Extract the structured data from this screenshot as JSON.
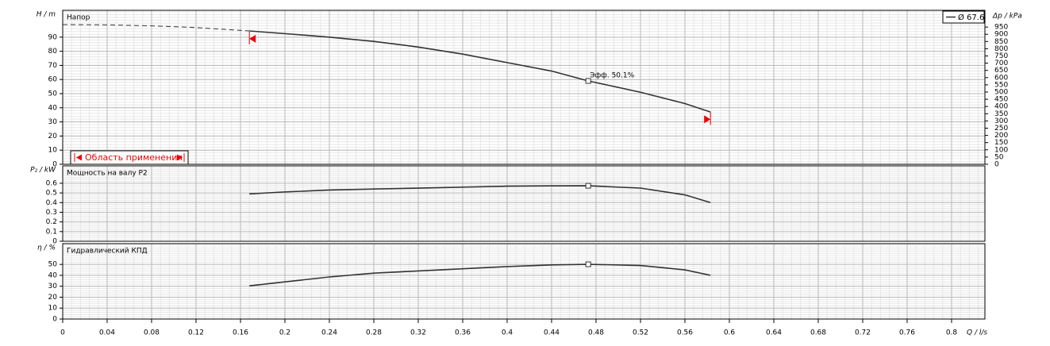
{
  "chart_data": [
    {
      "type": "line",
      "title": "Напор",
      "ylabel": "H / m",
      "y2label": "Δp / kPa",
      "ylim": [
        0,
        109
      ],
      "yticks": [
        0,
        10,
        20,
        30,
        40,
        50,
        60,
        70,
        80,
        90
      ],
      "y2lim": [
        0,
        1066
      ],
      "y2ticks": [
        0,
        50,
        100,
        150,
        200,
        250,
        300,
        350,
        400,
        450,
        500,
        550,
        600,
        650,
        700,
        750,
        800,
        850,
        900,
        950
      ],
      "series": [
        {
          "name": "Ø 67.6",
          "color": "#333333",
          "x": [
            0.168,
            0.2,
            0.24,
            0.28,
            0.32,
            0.36,
            0.4,
            0.44,
            0.473,
            0.52,
            0.56,
            0.583
          ],
          "values": [
            94.4,
            92.5,
            90,
            87,
            83,
            78,
            72,
            66,
            59,
            51,
            43,
            37
          ]
        },
        {
          "color": "#333333",
          "dash": true,
          "x": [
            0,
            0.04,
            0.08,
            0.12,
            0.168
          ],
          "values": [
            98.9,
            98.7,
            98,
            96.8,
            94.4
          ]
        }
      ],
      "bep": {
        "x": 0.473,
        "value": 59,
        "label": "Эфф. 50.1%"
      },
      "application_range": {
        "label": "Область применения",
        "x": [
          0.168,
          0.583
        ],
        "values": [
          86,
          29
        ]
      }
    },
    {
      "type": "line",
      "title": "Мощность на валу P2",
      "ylabel": "P₂ / kW",
      "ylim": [
        0,
        0.78
      ],
      "yticks": [
        0,
        0.1,
        0.2,
        0.3,
        0.4,
        0.5,
        0.6
      ],
      "series": [
        {
          "color": "#333333",
          "x": [
            0.168,
            0.2,
            0.24,
            0.28,
            0.32,
            0.36,
            0.4,
            0.44,
            0.473,
            0.52,
            0.56,
            0.583
          ],
          "values": [
            0.49,
            0.51,
            0.53,
            0.54,
            0.55,
            0.56,
            0.57,
            0.573,
            0.574,
            0.55,
            0.48,
            0.4
          ]
        }
      ],
      "bep": {
        "x": 0.473,
        "value": 0.574
      }
    },
    {
      "type": "line",
      "title": "Гидравлический КПД",
      "ylabel": "η / %",
      "xlabel": "Q / l/s",
      "ylim": [
        0,
        69
      ],
      "yticks": [
        0,
        10,
        20,
        30,
        40,
        50
      ],
      "xlim": [
        0,
        0.83
      ],
      "xticks": [
        0,
        0.04,
        0.08,
        0.12,
        0.16,
        0.2,
        0.24,
        0.28,
        0.32,
        0.36,
        0.4,
        0.44,
        0.48,
        0.52,
        0.56,
        0.6,
        0.64,
        0.68,
        0.72,
        0.76,
        0.8
      ],
      "series": [
        {
          "color": "#333333",
          "x": [
            0.168,
            0.2,
            0.24,
            0.28,
            0.32,
            0.36,
            0.4,
            0.44,
            0.473,
            0.52,
            0.56,
            0.583
          ],
          "values": [
            30.4,
            34,
            38.5,
            42,
            44,
            46,
            48,
            49.5,
            50.1,
            49,
            45,
            40
          ]
        }
      ],
      "bep": {
        "x": 0.473,
        "value": 50.1
      }
    }
  ]
}
